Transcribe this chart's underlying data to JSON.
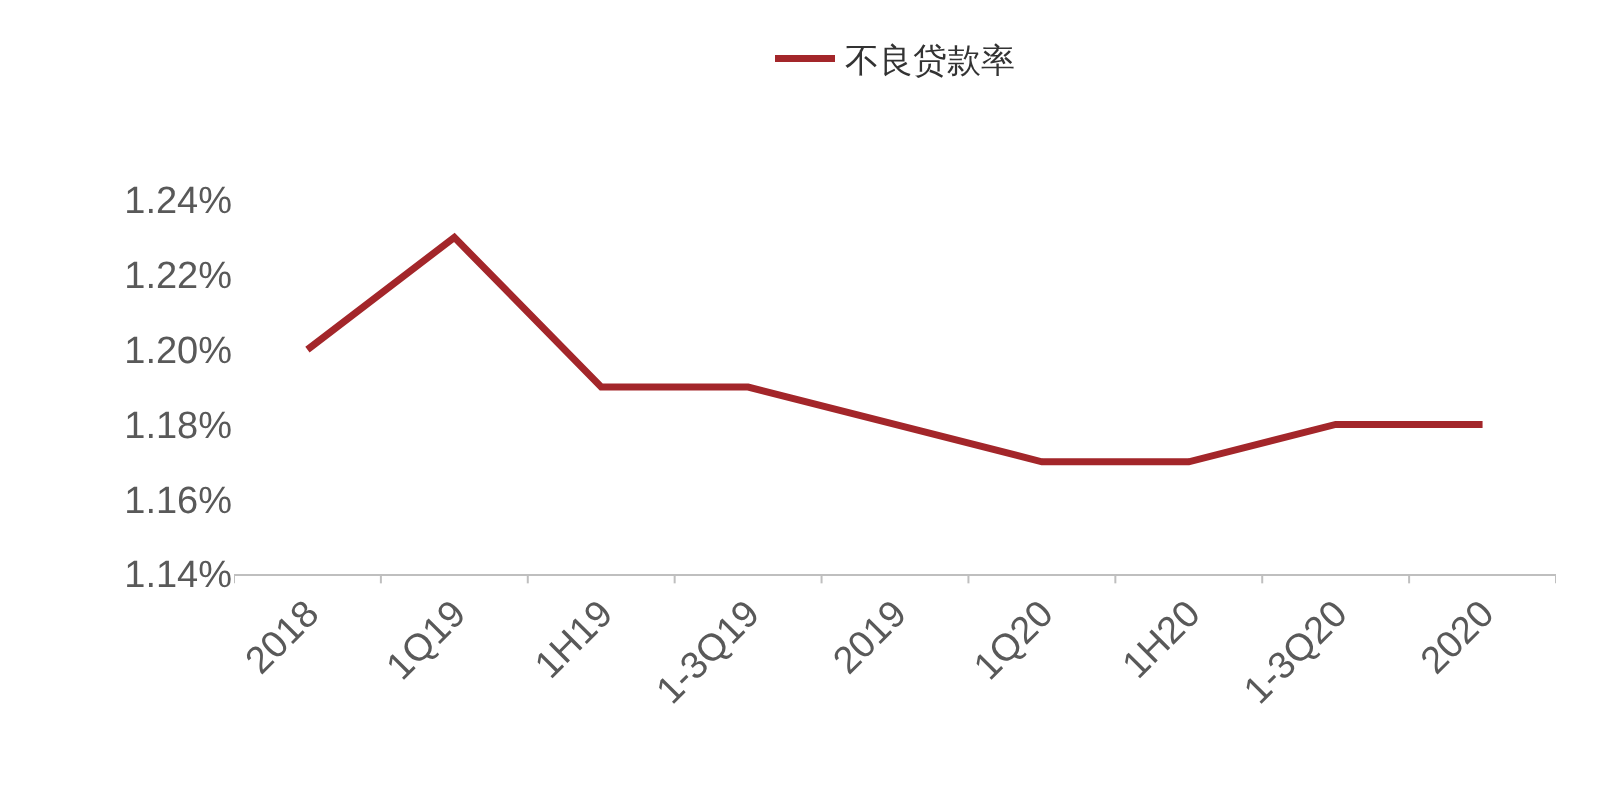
{
  "chart_data": {
    "type": "line",
    "categories": [
      "2018",
      "1Q19",
      "1H19",
      "1-3Q19",
      "2019",
      "1Q20",
      "1H20",
      "1-3Q20",
      "2020"
    ],
    "series": [
      {
        "name": "不良贷款率",
        "color": "#a3262a",
        "values": [
          1.2,
          1.23,
          1.19,
          1.19,
          1.18,
          1.17,
          1.17,
          1.18,
          1.18
        ]
      }
    ],
    "ylim": [
      1.14,
      1.24
    ],
    "yticks": [
      {
        "value": 1.14,
        "label": "1.14%"
      },
      {
        "value": 1.16,
        "label": "1.16%"
      },
      {
        "value": 1.18,
        "label": "1.18%"
      },
      {
        "value": 1.2,
        "label": "1.20%"
      },
      {
        "value": 1.22,
        "label": "1.22%"
      },
      {
        "value": 1.24,
        "label": "1.24%"
      }
    ],
    "grid": false,
    "legend": "top",
    "marker": "none",
    "line_style": "solid"
  }
}
